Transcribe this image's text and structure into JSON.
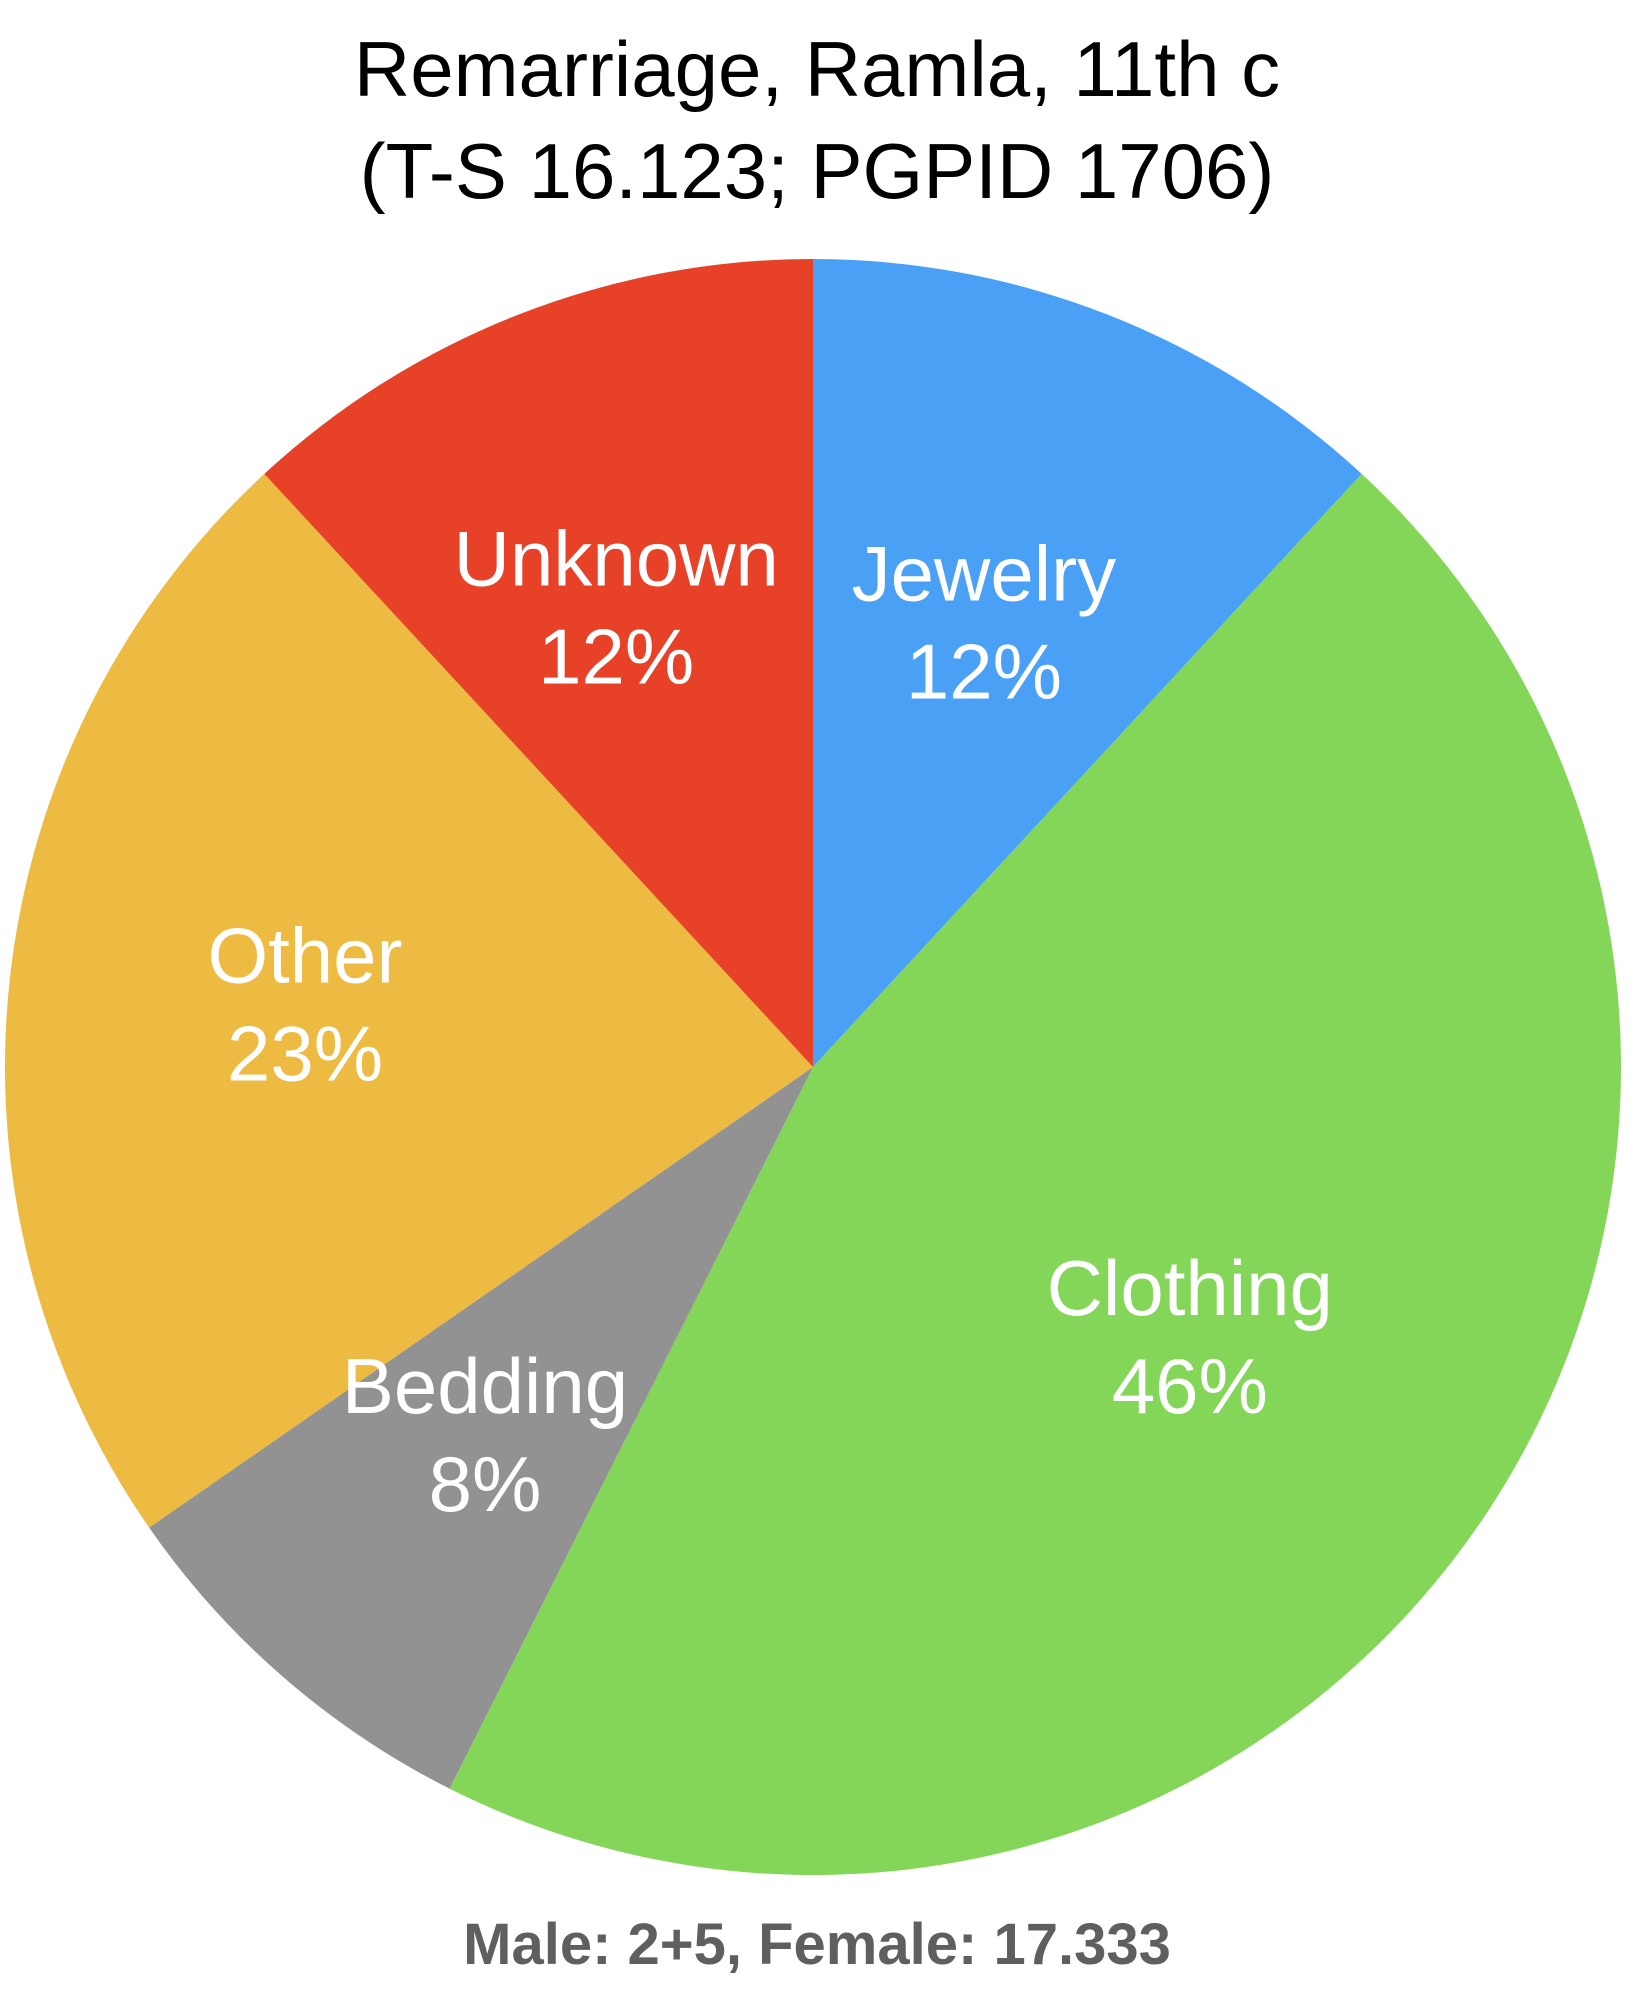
{
  "chart_data": {
    "type": "pie",
    "title_lines": [
      "Remarriage, Ramla, 11th c",
      "(T-S 16.123; PGPID 1706)"
    ],
    "start_angle_deg": 0,
    "direction": "clockwise",
    "slices": [
      {
        "label": "Jewelry",
        "value": 12,
        "value_label": "12%",
        "color": "#4aa0f5"
      },
      {
        "label": "Clothing",
        "value": 46,
        "value_label": "46%",
        "color": "#83d657"
      },
      {
        "label": "Bedding",
        "value": 8,
        "value_label": "8%",
        "color": "#929292"
      },
      {
        "label": "Other",
        "value": 23,
        "value_label": "23%",
        "color": "#edbb42"
      },
      {
        "label": "Unknown",
        "value": 12,
        "value_label": "12%",
        "color": "#e74127"
      }
    ],
    "label_color": "#ffffff",
    "footer_note": "Male: 2+5, Female: 17.333"
  }
}
